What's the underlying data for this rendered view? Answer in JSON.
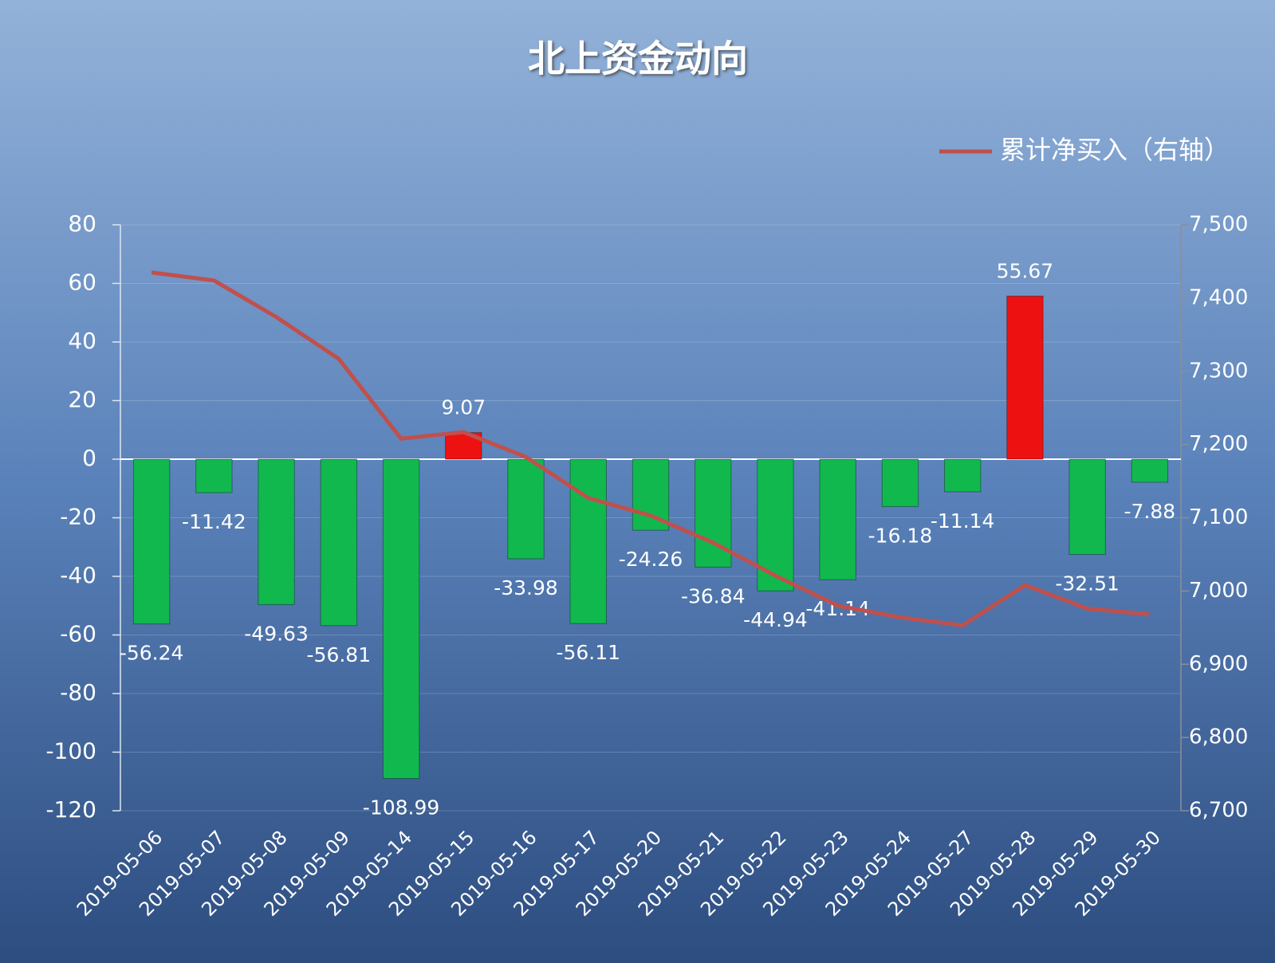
{
  "chart_data": {
    "type": "bar_line",
    "title": "北上资金动向",
    "categories": [
      "2019-05-06",
      "2019-05-07",
      "2019-05-08",
      "2019-05-09",
      "2019-05-14",
      "2019-05-15",
      "2019-05-16",
      "2019-05-17",
      "2019-05-20",
      "2019-05-21",
      "2019-05-22",
      "2019-05-23",
      "2019-05-24",
      "2019-05-27",
      "2019-05-28",
      "2019-05-29",
      "2019-05-30"
    ],
    "values": [
      -56.24,
      -11.42,
      -49.63,
      -56.81,
      -108.99,
      9.07,
      -33.98,
      -56.11,
      -24.26,
      -36.84,
      -44.94,
      -41.14,
      -16.18,
      -11.14,
      55.67,
      -32.51,
      -7.88
    ],
    "bar_colors": {
      "positive": "#ee1111",
      "negative": "#11b84e"
    },
    "series": [
      {
        "name": "累计净买入（右轴）",
        "color": "#c0504d",
        "axis": "y2",
        "values": [
          7435,
          7424,
          7374,
          7317,
          7208,
          7217,
          7183,
          7127,
          7103,
          7066,
          7021,
          6980,
          6964,
          6953,
          7008,
          6976,
          6968
        ]
      }
    ],
    "ylim": [
      -120,
      80
    ],
    "yticks": [
      80,
      60,
      40,
      20,
      0,
      -20,
      -40,
      -60,
      -80,
      -100,
      -120
    ],
    "y2lim": [
      6700,
      7500
    ],
    "y2ticks": [
      {
        "value": 7500,
        "label": "7,500"
      },
      {
        "value": 7400,
        "label": "7,400"
      },
      {
        "value": 7300,
        "label": "7,300"
      },
      {
        "value": 7200,
        "label": "7,200"
      },
      {
        "value": 7100,
        "label": "7,100"
      },
      {
        "value": 7000,
        "label": "7,000"
      },
      {
        "value": 6900,
        "label": "6,900"
      },
      {
        "value": 6800,
        "label": "6,800"
      },
      {
        "value": 6700,
        "label": "6,700"
      }
    ],
    "grid": true,
    "legend": "top-right"
  }
}
